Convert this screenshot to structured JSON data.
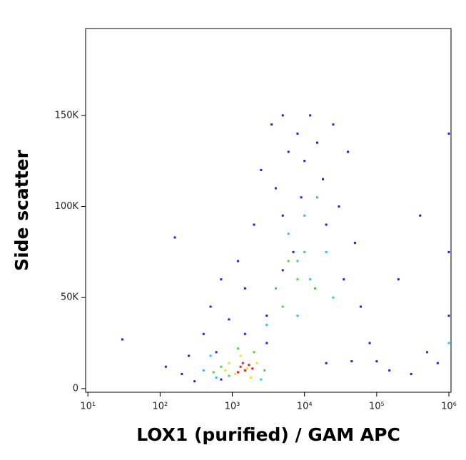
{
  "chart_data": {
    "type": "scatter",
    "x_label": "LOX1 (purified) / GAM APC",
    "y_label": "Side scatter",
    "log_x": true,
    "xlim": [
      9.3,
      1070000
    ],
    "xticks": [
      {
        "value": 10,
        "label": "10¹"
      },
      {
        "value": 100,
        "label": "10²"
      },
      {
        "value": 1000,
        "label": "10³"
      },
      {
        "value": 10000,
        "label": "10⁴"
      },
      {
        "value": 100000,
        "label": "10⁵"
      },
      {
        "value": 1000000,
        "label": "10⁶"
      }
    ],
    "ylim": [
      -2000,
      197700
    ],
    "yticks": [
      0,
      {
        "value": 50000,
        "label": "50K"
      },
      {
        "value": 100000,
        "label": "100K"
      },
      {
        "value": 150000,
        "label": "150K"
      }
    ],
    "series": [
      {
        "color": "#1a22e6",
        "x": [
          30,
          120,
          160,
          200,
          250,
          300,
          400,
          500,
          600,
          700,
          900,
          1200,
          1500,
          2000,
          2500,
          3000,
          3500,
          4000,
          5000,
          5000,
          6000,
          7000,
          8000,
          9000,
          10000,
          12000,
          15000,
          18000,
          20000,
          25000,
          30000,
          35000,
          40000,
          50000,
          60000,
          80000,
          100000,
          150000,
          200000,
          300000,
          400000,
          500000,
          700000,
          1050000,
          1050000,
          1050000,
          45000,
          20000,
          5000,
          3000,
          1500,
          700
        ],
        "y": [
          27000,
          12000,
          83000,
          8000,
          18000,
          4000,
          30000,
          45000,
          20000,
          60000,
          38000,
          70000,
          55000,
          90000,
          120000,
          40000,
          145000,
          110000,
          150000,
          95000,
          130000,
          75000,
          140000,
          105000,
          125000,
          150000,
          135000,
          115000,
          90000,
          145000,
          100000,
          60000,
          130000,
          80000,
          45000,
          25000,
          15000,
          10000,
          60000,
          8000,
          95000,
          20000,
          14000,
          40000,
          140000,
          75000,
          15000,
          14000,
          65000,
          25000,
          30000,
          5000
        ]
      },
      {
        "color": "#2bc3e3",
        "x": [
          400,
          600,
          2500,
          3000,
          4000,
          6000,
          8000,
          10000,
          12000,
          15000,
          20000,
          25000,
          8000,
          1050000,
          500
        ],
        "y": [
          10000,
          6000,
          5000,
          35000,
          55000,
          85000,
          70000,
          95000,
          60000,
          105000,
          75000,
          50000,
          40000,
          25000,
          18000
        ]
      },
      {
        "color": "#4fd14a",
        "x": [
          700,
          900,
          2000,
          2800,
          1200,
          6000,
          8000,
          10000,
          14000,
          5000,
          550
        ],
        "y": [
          12000,
          7000,
          20000,
          10000,
          22000,
          70000,
          60000,
          75000,
          55000,
          45000,
          9000
        ]
      },
      {
        "color": "#f0e414",
        "x": [
          900,
          1100,
          1300,
          1800,
          2200,
          1600,
          800
        ],
        "y": [
          14000,
          8000,
          18000,
          6000,
          14000,
          11000,
          10000
        ]
      },
      {
        "color": "#e8211c",
        "x": [
          1300,
          1500,
          1700,
          1400,
          1900,
          1200
        ],
        "y": [
          12000,
          10000,
          13000,
          14000,
          11000,
          9000
        ]
      }
    ]
  }
}
